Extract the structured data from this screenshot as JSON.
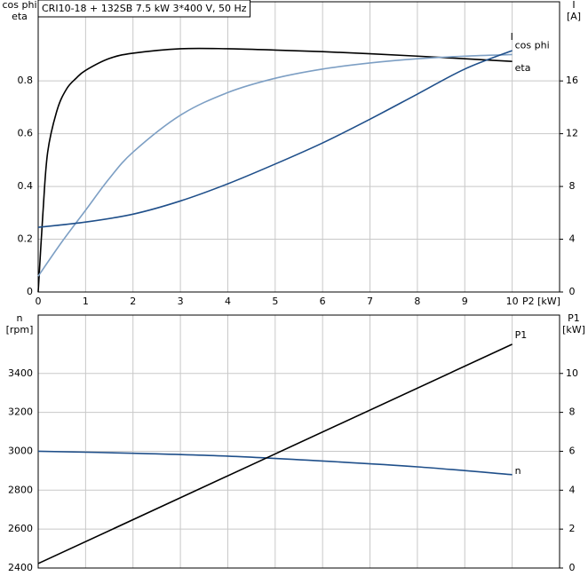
{
  "chart_data": [
    {
      "type": "line",
      "title": "CRI10-18 + 132SB   7.5 kW   3*400 V, 50 Hz",
      "ylabel": [
        "cos phi",
        "eta"
      ],
      "y2label": [
        "I",
        "[A]"
      ],
      "xlabel": "P2 [kW]",
      "xlim": [
        0,
        11
      ],
      "xticks": [
        0,
        1,
        2,
        3,
        4,
        5,
        6,
        7,
        8,
        9,
        10
      ],
      "xtick_labels": true,
      "ylim": [
        0,
        1.1
      ],
      "yticks": [
        0.0,
        0.2,
        0.4,
        0.6,
        0.8
      ],
      "y2lim": [
        0,
        22
      ],
      "y2ticks": [
        0,
        4,
        8,
        12,
        16
      ],
      "grid": true,
      "series": [
        {
          "name": "eta",
          "color": "#000000",
          "x": [
            0,
            0.1,
            0.2,
            0.4,
            0.6,
            0.8,
            1,
            1.5,
            2,
            3,
            4,
            5,
            6,
            7,
            8,
            9,
            10
          ],
          "values": [
            0,
            0.3,
            0.53,
            0.69,
            0.77,
            0.81,
            0.84,
            0.885,
            0.905,
            0.922,
            0.922,
            0.917,
            0.911,
            0.903,
            0.894,
            0.884,
            0.874
          ]
        },
        {
          "name": "cos phi",
          "color": "#7d9fc4",
          "x": [
            0,
            0.5,
            1,
            1.5,
            2,
            3,
            4,
            5,
            6,
            7,
            8,
            9,
            10
          ],
          "values": [
            0.06,
            0.19,
            0.31,
            0.43,
            0.53,
            0.67,
            0.756,
            0.81,
            0.845,
            0.868,
            0.884,
            0.894,
            0.9
          ]
        },
        {
          "name": "I",
          "color": "#1f4f8a",
          "axis": "y2",
          "x": [
            0,
            1,
            2,
            3,
            4,
            5,
            6,
            7,
            8,
            9,
            10
          ],
          "values": [
            4.9,
            5.3,
            5.9,
            6.9,
            8.2,
            9.7,
            11.3,
            13.1,
            15,
            16.9,
            18.3
          ]
        }
      ]
    },
    {
      "type": "line",
      "ylabel": [
        "n",
        "[rpm]"
      ],
      "y2label": [
        "P1",
        "[kW]"
      ],
      "xlim": [
        0,
        11
      ],
      "xticks": [
        0,
        1,
        2,
        3,
        4,
        5,
        6,
        7,
        8,
        9,
        10
      ],
      "xtick_labels": false,
      "ylim": [
        2400,
        3700
      ],
      "yticks": [
        2400,
        2600,
        2800,
        3000,
        3200,
        3400
      ],
      "y2lim": [
        0,
        13
      ],
      "y2ticks": [
        0,
        2,
        4,
        6,
        8,
        10
      ],
      "grid": true,
      "series": [
        {
          "name": "n",
          "color": "#1f4f8a",
          "x": [
            0,
            2,
            4,
            6,
            8,
            10
          ],
          "values": [
            3000,
            2990,
            2975,
            2950,
            2920,
            2880
          ]
        },
        {
          "name": "P1",
          "color": "#000000",
          "axis": "y2",
          "x": [
            0,
            10
          ],
          "values": [
            0.23,
            11.5
          ]
        }
      ]
    }
  ]
}
